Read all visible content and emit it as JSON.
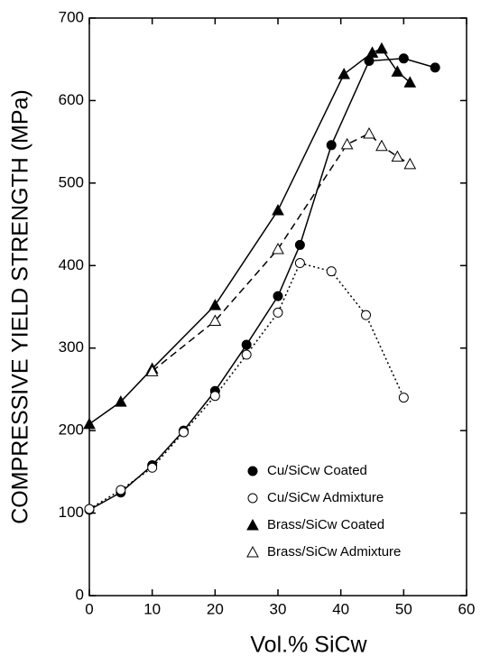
{
  "chart_data": {
    "type": "line",
    "x_label": "Vol.% SiCw",
    "y_label": "COMPRESSIVE YIELD STRENGTH (MPa)",
    "xlim": [
      0,
      60
    ],
    "xticks": [
      0,
      10,
      20,
      30,
      40,
      50,
      60
    ],
    "ylim": [
      0,
      700
    ],
    "yticks": [
      0,
      100,
      200,
      300,
      400,
      500,
      600,
      700
    ],
    "legend": "lower right",
    "series": [
      {
        "name": "Cu/SiCw Coated",
        "color": "#000000",
        "marker": "circle",
        "filled": true,
        "line": "solid",
        "x": [
          0,
          5,
          10,
          15,
          20,
          25,
          30,
          33.5,
          38.5,
          44.5,
          50,
          55
        ],
        "values": [
          104,
          125,
          158,
          200,
          248,
          304,
          363,
          425,
          546,
          648,
          651,
          640
        ]
      },
      {
        "name": "Cu/SiCw Admixture",
        "color": "#000000",
        "marker": "circle",
        "filled": false,
        "line": "dotted",
        "x": [
          0,
          5,
          10,
          15,
          20,
          25,
          30,
          33.5,
          38.5,
          44,
          50
        ],
        "values": [
          105,
          128,
          155,
          198,
          242,
          292,
          343,
          403,
          393,
          340,
          240
        ]
      },
      {
        "name": "Brass/SiCw Coated",
        "color": "#000000",
        "marker": "triangle",
        "filled": true,
        "line": "solid",
        "x": [
          0,
          5,
          10,
          20,
          30,
          40.5,
          45,
          46.5,
          49,
          51
        ],
        "values": [
          208,
          235,
          275,
          352,
          467,
          632,
          658,
          663,
          635,
          622
        ]
      },
      {
        "name": "Brass/SiCw Admixture",
        "color": "#000000",
        "marker": "triangle",
        "filled": false,
        "line": "dashed",
        "x": [
          10,
          20,
          30,
          41,
          44.5,
          46.5,
          49,
          51
        ],
        "values": [
          272,
          333,
          420,
          547,
          560,
          545,
          532,
          523
        ]
      }
    ]
  }
}
